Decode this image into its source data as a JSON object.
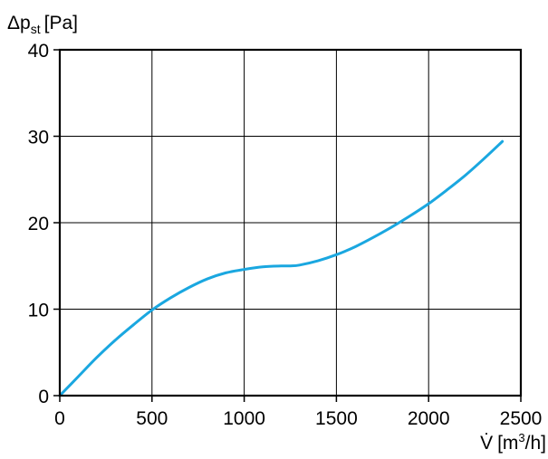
{
  "chart_data": {
    "type": "line",
    "title": "",
    "ylabel": {
      "symbol": "Δp",
      "subscript": "st",
      "unit": "[Pa]"
    },
    "xlabel": {
      "symbol": "V̇",
      "unit_prefix": "[m",
      "unit_superscript": "3",
      "unit_suffix": "/h]"
    },
    "xlim": [
      0,
      2500
    ],
    "ylim": [
      0,
      40
    ],
    "x_ticks": [
      0,
      500,
      1000,
      1500,
      2000,
      2500
    ],
    "y_ticks": [
      0,
      10,
      20,
      30,
      40
    ],
    "grid": true,
    "series": [
      {
        "color": "#1aa7e0",
        "x": [
          0,
          100,
          200,
          300,
          400,
          500,
          600,
          700,
          800,
          900,
          1000,
          1100,
          1200,
          1250,
          1300,
          1400,
          1500,
          1600,
          1700,
          1800,
          1900,
          2000,
          2100,
          2200,
          2300,
          2400
        ],
        "y": [
          0,
          2.2,
          4.4,
          6.4,
          8.2,
          9.9,
          11.3,
          12.5,
          13.5,
          14.2,
          14.6,
          14.9,
          15.0,
          15.0,
          15.1,
          15.6,
          16.3,
          17.2,
          18.3,
          19.5,
          20.8,
          22.2,
          23.8,
          25.5,
          27.4,
          29.4
        ]
      }
    ]
  }
}
